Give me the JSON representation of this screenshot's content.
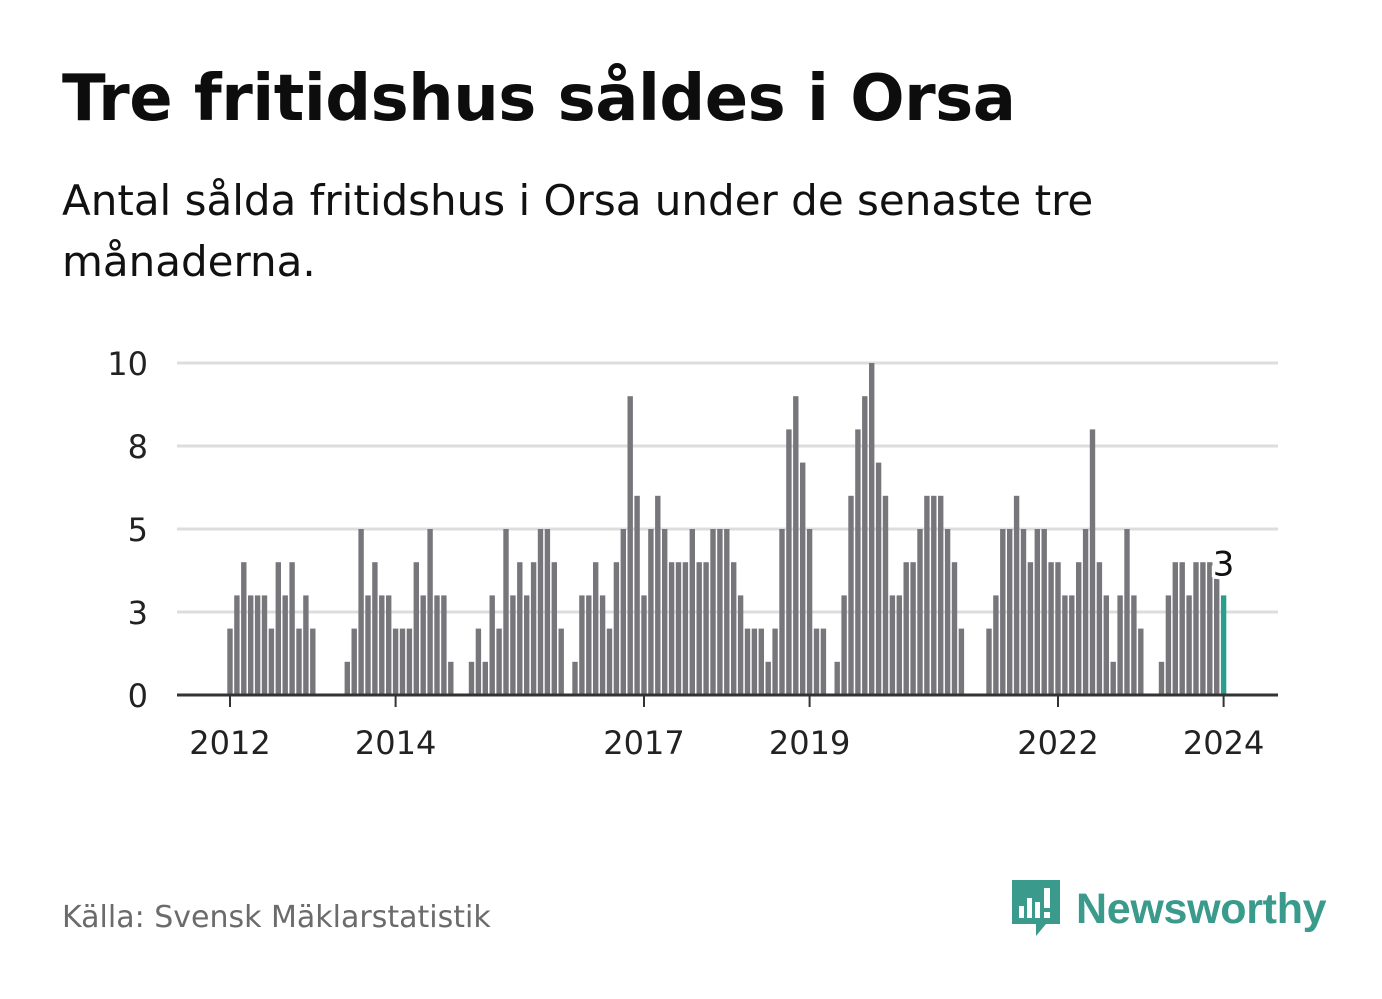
{
  "title": "Tre fritidshus såldes i Orsa",
  "subtitle": "Antal sålda fritidshus i Orsa under de senaste tre månaderna.",
  "source": "Källa: Svensk Mäklarstatistik",
  "logo": {
    "text": "Newsworthy",
    "icon": "newsworthy-bar-chart-icon"
  },
  "colors": {
    "bar": "#77767b",
    "highlight": "#2a9d8f",
    "grid": "#dddddd",
    "axis": "#333333",
    "brand": "#3a9a8c"
  },
  "chart_data": {
    "type": "bar",
    "title": "Tre fritidshus såldes i Orsa",
    "xlabel": "",
    "ylabel": "",
    "ylim": [
      0,
      10
    ],
    "y_ticks": [
      {
        "value": 0,
        "label": "0"
      },
      {
        "value": 2.5,
        "label": "3"
      },
      {
        "value": 5,
        "label": "5"
      },
      {
        "value": 7.5,
        "label": "8"
      },
      {
        "value": 10,
        "label": "10"
      }
    ],
    "x_ticks": [
      {
        "index": 0,
        "label": "2012"
      },
      {
        "index": 24,
        "label": "2014"
      },
      {
        "index": 60,
        "label": "2017"
      },
      {
        "index": 84,
        "label": "2019"
      },
      {
        "index": 120,
        "label": "2022"
      },
      {
        "index": 144,
        "label": "2024"
      }
    ],
    "grid": true,
    "highlight_label": "3",
    "values": [
      2,
      3,
      4,
      3,
      3,
      3,
      2,
      4,
      3,
      4,
      2,
      3,
      2,
      0,
      0,
      0,
      0,
      1,
      2,
      5,
      3,
      4,
      3,
      3,
      2,
      2,
      2,
      4,
      3,
      5,
      3,
      3,
      1,
      0,
      0,
      1,
      2,
      1,
      3,
      2,
      5,
      3,
      4,
      3,
      4,
      5,
      5,
      4,
      2,
      0,
      1,
      3,
      3,
      4,
      3,
      2,
      4,
      5,
      9,
      6,
      3,
      5,
      6,
      5,
      4,
      4,
      4,
      5,
      4,
      4,
      5,
      5,
      5,
      4,
      3,
      2,
      2,
      2,
      1,
      2,
      5,
      8,
      9,
      7,
      5,
      2,
      2,
      0,
      1,
      3,
      6,
      8,
      9,
      10,
      7,
      6,
      3,
      3,
      4,
      4,
      5,
      6,
      6,
      6,
      5,
      4,
      2,
      0,
      0,
      0,
      2,
      3,
      5,
      5,
      6,
      5,
      4,
      5,
      5,
      4,
      4,
      3,
      3,
      4,
      5,
      8,
      4,
      3,
      1,
      3,
      5,
      3,
      2,
      0,
      0,
      1,
      3,
      4,
      4,
      3,
      4,
      4,
      4,
      3.5,
      3
    ]
  }
}
